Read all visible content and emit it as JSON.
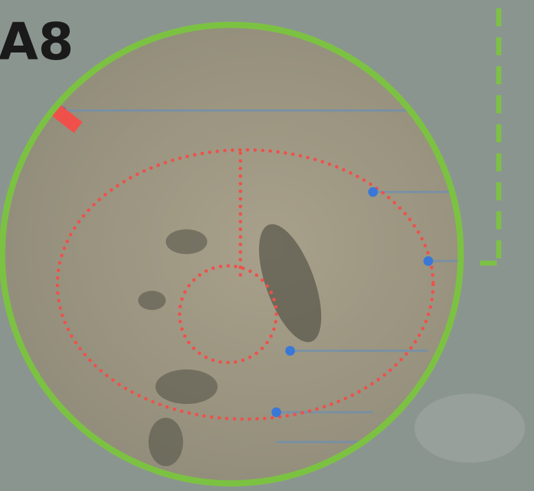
{
  "map": {
    "label": "A8"
  }
}
